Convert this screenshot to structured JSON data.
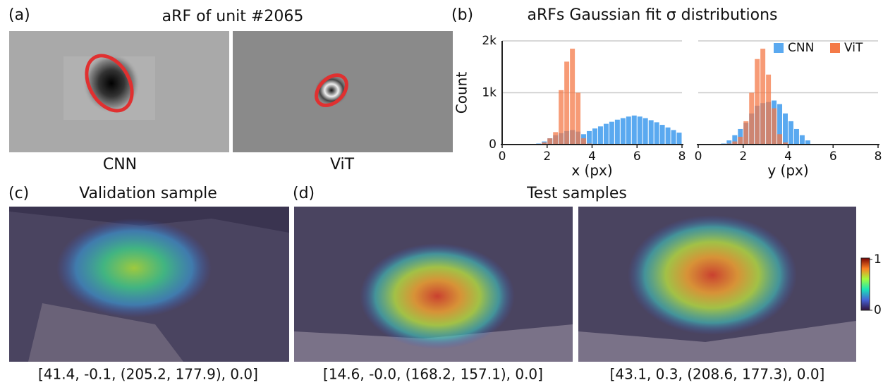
{
  "panels": {
    "a_label": "(a)",
    "a_title": "aRF of unit #2065",
    "a_cnn": "CNN",
    "a_vit": "ViT",
    "b_label": "(b)",
    "c_label": "(c)",
    "c_title": "Validation sample",
    "c_caption": "[41.4, -0.1, (205.2, 177.9), 0.0]",
    "d_label": "(d)",
    "d_title": "Test samples",
    "d_caption_1": "[14.6, -0.0, (168.2, 157.1), 0.0]",
    "d_caption_2": "[43.1, 0.3, (208.6, 177.3), 0.0]",
    "colorbar_ticks": [
      0,
      1
    ]
  },
  "chart_data": [
    {
      "type": "histogram",
      "title": "aRFs Gaussian fit σ distributions",
      "x_label": "x (px)",
      "y_label": "Count",
      "bins": [
        1.5,
        1.75,
        2,
        2.25,
        2.5,
        2.75,
        3,
        3.25,
        3.5,
        3.75,
        4,
        4.25,
        4.5,
        4.75,
        5,
        5.25,
        5.5,
        5.75,
        6,
        6.25,
        6.5,
        6.75,
        7,
        7.25,
        7.5,
        7.75,
        8
      ],
      "series": [
        {
          "name": "CNN",
          "color": "#5aa9f0",
          "values": [
            20,
            60,
            120,
            180,
            220,
            260,
            280,
            250,
            200,
            260,
            310,
            350,
            400,
            440,
            480,
            510,
            540,
            560,
            540,
            510,
            470,
            430,
            380,
            330,
            280,
            230
          ]
        },
        {
          "name": "ViT",
          "color": "#f47a48",
          "values": [
            10,
            40,
            120,
            240,
            1050,
            1600,
            1850,
            1000,
            120,
            20,
            0,
            0,
            0,
            0,
            0,
            0,
            0,
            0,
            0,
            0,
            0,
            0,
            0,
            0,
            0,
            0
          ]
        }
      ],
      "xlim": [
        0,
        8
      ],
      "xticks": [
        0,
        2,
        4,
        6,
        8
      ],
      "ylim": [
        0,
        2000
      ],
      "yticks": [
        0,
        {
          "value": 1000,
          "label": "1k"
        },
        {
          "value": 2000,
          "label": "2k"
        }
      ],
      "grid": true,
      "legend": "upper right"
    },
    {
      "type": "histogram",
      "x_label": "y (px)",
      "bins": [
        1,
        1.25,
        1.5,
        1.75,
        2,
        2.25,
        2.5,
        2.75,
        3,
        3.25,
        3.5,
        3.75,
        4,
        4.25,
        4.5,
        4.75,
        5
      ],
      "series": [
        {
          "color": "#5aa9f0",
          "values": [
            20,
            80,
            180,
            300,
            420,
            600,
            750,
            800,
            820,
            850,
            780,
            600,
            450,
            300,
            180,
            80
          ]
        },
        {
          "color": "#f47a48",
          "values": [
            5,
            20,
            60,
            150,
            450,
            1000,
            1650,
            1850,
            1350,
            700,
            200,
            40,
            10,
            0,
            0,
            0
          ]
        }
      ],
      "xlim": [
        0,
        8
      ],
      "xticks": [
        0,
        2,
        4,
        6,
        8
      ],
      "ylim": [
        0,
        2000
      ],
      "yticks": [
        0,
        1000,
        2000
      ],
      "grid": true
    }
  ]
}
